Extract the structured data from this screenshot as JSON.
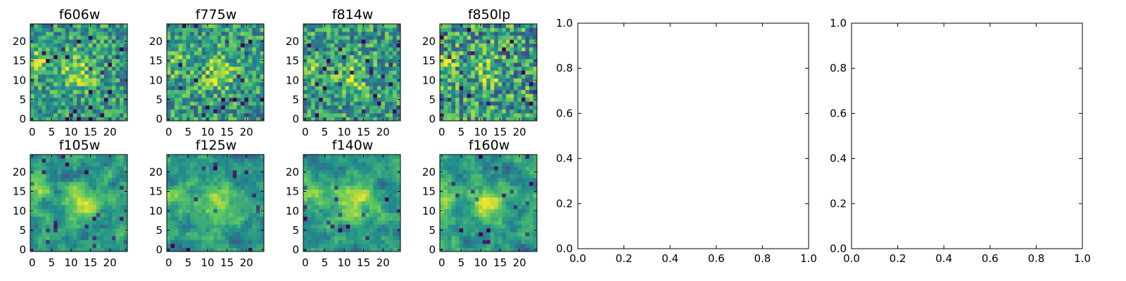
{
  "colormap": [
    "#440154",
    "#3b528b",
    "#21918c",
    "#5ec962",
    "#fde725"
  ],
  "chart_data": [
    {
      "type": "heatmap",
      "title": "f606w",
      "grid_size": 25,
      "x_ticks": [
        "0",
        "5",
        "10",
        "15",
        "20"
      ],
      "y_ticks": [
        "0",
        "5",
        "10",
        "15",
        "20"
      ],
      "blob": {
        "x": 12,
        "y": 12,
        "sigma": 3.2,
        "strength": 0.32
      },
      "second_blob": {
        "x": 1,
        "y": 15,
        "sigma": 2.2,
        "strength": 0.28
      },
      "noise": 0.26,
      "smooth": 0,
      "seed": 606
    },
    {
      "type": "heatmap",
      "title": "f775w",
      "grid_size": 25,
      "x_ticks": [
        "0",
        "5",
        "10",
        "15",
        "20"
      ],
      "y_ticks": [
        "0",
        "5",
        "10",
        "15",
        "20"
      ],
      "blob": {
        "x": 13,
        "y": 12,
        "sigma": 3.0,
        "strength": 0.3
      },
      "second_blob": {
        "x": 2,
        "y": 14,
        "sigma": 2.0,
        "strength": 0.22
      },
      "noise": 0.28,
      "smooth": 0,
      "seed": 775
    },
    {
      "type": "heatmap",
      "title": "f814w",
      "grid_size": 25,
      "x_ticks": [
        "0",
        "5",
        "10",
        "15",
        "20"
      ],
      "y_ticks": [
        "0",
        "5",
        "10",
        "15",
        "20"
      ],
      "blob": {
        "x": 12,
        "y": 11,
        "sigma": 3.0,
        "strength": 0.3
      },
      "second_blob": {
        "x": 1,
        "y": 13,
        "sigma": 2.0,
        "strength": 0.26
      },
      "noise": 0.28,
      "smooth": 0,
      "seed": 814
    },
    {
      "type": "heatmap",
      "title": "f850lp",
      "grid_size": 25,
      "x_ticks": [
        "0",
        "5",
        "10",
        "15",
        "20"
      ],
      "y_ticks": [
        "0",
        "5",
        "10",
        "15",
        "20"
      ],
      "blob": {
        "x": 12,
        "y": 12,
        "sigma": 3.0,
        "strength": 0.2
      },
      "second_blob": {
        "x": 1,
        "y": 14,
        "sigma": 2.0,
        "strength": 0.22
      },
      "noise": 0.34,
      "smooth": 0,
      "seed": 850
    },
    {
      "type": "heatmap",
      "title": "f105w",
      "grid_size": 25,
      "x_ticks": [
        "0",
        "5",
        "10",
        "15",
        "20"
      ],
      "y_ticks": [
        "0",
        "5",
        "10",
        "15",
        "20"
      ],
      "blob": {
        "x": 13,
        "y": 12,
        "sigma": 3.2,
        "strength": 0.4
      },
      "second_blob": {
        "x": 1,
        "y": 15,
        "sigma": 2.4,
        "strength": 0.32
      },
      "noise": 0.3,
      "smooth": 1,
      "seed": 105
    },
    {
      "type": "heatmap",
      "title": "f125w",
      "grid_size": 25,
      "x_ticks": [
        "0",
        "5",
        "10",
        "15",
        "20"
      ],
      "y_ticks": [
        "0",
        "5",
        "10",
        "15",
        "20"
      ],
      "blob": {
        "x": 13,
        "y": 12,
        "sigma": 3.4,
        "strength": 0.36
      },
      "second_blob": {
        "x": 1,
        "y": 14,
        "sigma": 2.4,
        "strength": 0.28
      },
      "noise": 0.3,
      "smooth": 1,
      "seed": 125
    },
    {
      "type": "heatmap",
      "title": "f140w",
      "grid_size": 25,
      "x_ticks": [
        "0",
        "5",
        "10",
        "15",
        "20"
      ],
      "y_ticks": [
        "0",
        "5",
        "10",
        "15",
        "20"
      ],
      "blob": {
        "x": 13,
        "y": 12,
        "sigma": 3.6,
        "strength": 0.36
      },
      "second_blob": {
        "x": 2,
        "y": 14,
        "sigma": 2.6,
        "strength": 0.28
      },
      "noise": 0.3,
      "smooth": 1,
      "seed": 140
    },
    {
      "type": "heatmap",
      "title": "f160w",
      "grid_size": 25,
      "x_ticks": [
        "0",
        "5",
        "10",
        "15",
        "20"
      ],
      "y_ticks": [
        "0",
        "5",
        "10",
        "15",
        "20"
      ],
      "blob": {
        "x": 12,
        "y": 12,
        "sigma": 3.2,
        "strength": 0.4
      },
      "second_blob": {
        "x": 1,
        "y": 14,
        "sigma": 2.4,
        "strength": 0.34
      },
      "noise": 0.34,
      "smooth": 1,
      "seed": 160
    },
    {
      "type": "empty",
      "title": "",
      "xlim": [
        0,
        1
      ],
      "ylim": [
        0,
        1
      ],
      "x_ticks": [
        "0.0",
        "0.2",
        "0.4",
        "0.6",
        "0.8",
        "1.0"
      ],
      "y_ticks": [
        "0.0",
        "0.2",
        "0.4",
        "0.6",
        "0.8",
        "1.0"
      ]
    },
    {
      "type": "empty",
      "title": "",
      "xlim": [
        0,
        1
      ],
      "ylim": [
        0,
        1
      ],
      "x_ticks": [
        "0.0",
        "0.2",
        "0.4",
        "0.6",
        "0.8",
        "1.0"
      ],
      "y_ticks": [
        "0.0",
        "0.2",
        "0.4",
        "0.6",
        "0.8",
        "1.0"
      ]
    }
  ]
}
